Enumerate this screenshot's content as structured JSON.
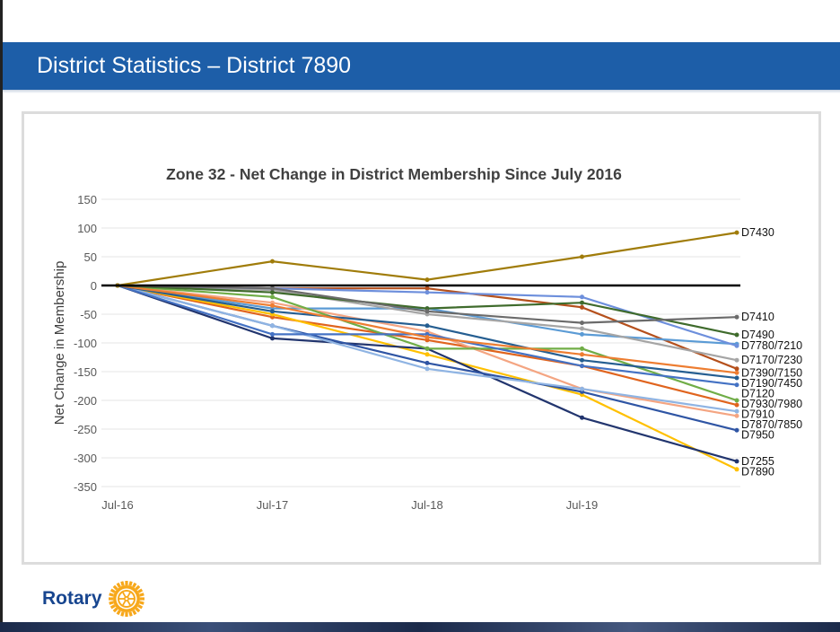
{
  "header": {
    "title": "District Statistics – District 7890"
  },
  "logo": {
    "text": "Rotary",
    "colors": {
      "text": "#17458f",
      "wheel": "#f7a81b"
    }
  },
  "chart_data": {
    "type": "line",
    "title": "Zone 32 - Net Change in District Membership Since July 2016",
    "xlabel": "",
    "ylabel": "Net Change in Membership",
    "categories": [
      "Jul-16",
      "Jul-17",
      "Jul-18",
      "Jul-19",
      ""
    ],
    "ylim": [
      -350,
      150
    ],
    "yticks": [
      150,
      100,
      50,
      0,
      -50,
      -100,
      -150,
      -200,
      -250,
      -300,
      -350
    ],
    "grid": true,
    "legend": "direct labels at line ends (right)",
    "series": [
      {
        "name": "D7430",
        "color": "#a07c0a",
        "values": [
          0,
          42,
          10,
          50,
          92
        ]
      },
      {
        "name": "D7410",
        "color": "#6b6b6b",
        "values": [
          0,
          -5,
          -45,
          -65,
          -55
        ]
      },
      {
        "name": "D7490",
        "color": "#3f6b2c",
        "values": [
          0,
          -12,
          -40,
          -30,
          -86
        ]
      },
      {
        "name": "D7780/7210",
        "color": "#6d8fdc",
        "values": [
          0,
          -5,
          -12,
          -20,
          -105
        ]
      },
      {
        "name": "D7170/7230",
        "color": "#a5a5a5",
        "values": [
          0,
          -8,
          -50,
          -75,
          -130
        ]
      },
      {
        "name": "D7390/7150",
        "color": "#ed7d31",
        "values": [
          0,
          -35,
          -90,
          -120,
          -152
        ]
      },
      {
        "name": "D7190/7450",
        "color": "#255e91",
        "values": [
          0,
          -45,
          -70,
          -130,
          -161
        ]
      },
      {
        "name": "D7120",
        "color": "#4472c4",
        "values": [
          0,
          -85,
          -85,
          -140,
          -173
        ]
      },
      {
        "name": "D7930/7980",
        "color": "#70ad47",
        "values": [
          0,
          -20,
          -110,
          -110,
          -200
        ]
      },
      {
        "name": "D7910",
        "color": "#8fb4e3",
        "values": [
          0,
          -70,
          -145,
          -180,
          -219
        ]
      },
      {
        "name": "D7870/7850",
        "color": "#f4a582",
        "values": [
          0,
          -30,
          -80,
          -180,
          -227
        ]
      },
      {
        "name": "D7950",
        "color": "#2f55a4",
        "values": [
          0,
          -70,
          -135,
          -185,
          -252
        ]
      },
      {
        "name": "D7255",
        "color": "#22356e",
        "values": [
          0,
          -92,
          -110,
          -230,
          -306
        ]
      },
      {
        "name": "D7890",
        "color": "#ffc000",
        "values": [
          0,
          -50,
          -120,
          -190,
          -320
        ]
      }
    ],
    "extra_series": [
      {
        "color": "#b5501c",
        "values": [
          0,
          -5,
          -5,
          -38,
          -145
        ]
      },
      {
        "color": "#5b9bd5",
        "values": [
          0,
          -40,
          -40,
          -85,
          -102
        ]
      },
      {
        "color": "#e0641e",
        "values": [
          0,
          -55,
          -95,
          -140,
          -208
        ]
      }
    ]
  }
}
